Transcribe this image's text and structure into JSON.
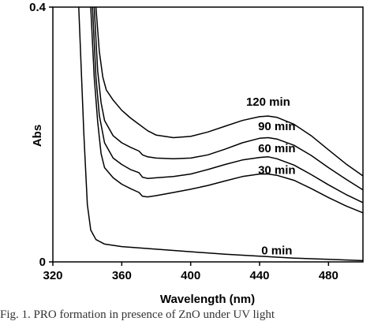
{
  "chart_data": {
    "type": "line",
    "title": "",
    "xlabel": "Wavelength (nm)",
    "ylabel": "Abs",
    "xlim": [
      320,
      500
    ],
    "ylim": [
      0,
      0.4
    ],
    "x_ticks": [
      "320",
      "360",
      "400",
      "440",
      "480"
    ],
    "y_ticks": [
      "0",
      "0.4"
    ],
    "grid": false,
    "series": [
      {
        "name": "0 min",
        "color": "#000000",
        "points": [
          [
            335,
            0.4
          ],
          [
            338,
            0.2
          ],
          [
            340,
            0.09
          ],
          [
            342,
            0.05
          ],
          [
            345,
            0.035
          ],
          [
            350,
            0.028
          ],
          [
            360,
            0.024
          ],
          [
            380,
            0.02
          ],
          [
            400,
            0.016
          ],
          [
            420,
            0.012
          ],
          [
            440,
            0.009
          ],
          [
            460,
            0.006
          ],
          [
            480,
            0.004
          ],
          [
            500,
            0.002
          ]
        ]
      },
      {
        "name": "30 min",
        "color": "#000000",
        "points": [
          [
            342,
            0.4
          ],
          [
            344,
            0.29
          ],
          [
            346,
            0.22
          ],
          [
            348,
            0.17
          ],
          [
            350,
            0.148
          ],
          [
            355,
            0.132
          ],
          [
            360,
            0.122
          ],
          [
            365,
            0.115
          ],
          [
            370,
            0.109
          ],
          [
            372,
            0.103
          ],
          [
            375,
            0.102
          ],
          [
            380,
            0.104
          ],
          [
            390,
            0.109
          ],
          [
            400,
            0.114
          ],
          [
            410,
            0.12
          ],
          [
            420,
            0.127
          ],
          [
            430,
            0.134
          ],
          [
            440,
            0.138
          ],
          [
            445,
            0.138
          ],
          [
            450,
            0.136
          ],
          [
            460,
            0.128
          ],
          [
            470,
            0.115
          ],
          [
            480,
            0.101
          ],
          [
            490,
            0.088
          ],
          [
            500,
            0.077
          ]
        ]
      },
      {
        "name": "60 min",
        "color": "#000000",
        "points": [
          [
            343,
            0.4
          ],
          [
            345,
            0.29
          ],
          [
            347,
            0.23
          ],
          [
            350,
            0.187
          ],
          [
            355,
            0.163
          ],
          [
            360,
            0.153
          ],
          [
            365,
            0.145
          ],
          [
            370,
            0.14
          ],
          [
            372,
            0.133
          ],
          [
            375,
            0.131
          ],
          [
            380,
            0.132
          ],
          [
            390,
            0.134
          ],
          [
            400,
            0.138
          ],
          [
            410,
            0.145
          ],
          [
            420,
            0.153
          ],
          [
            430,
            0.16
          ],
          [
            440,
            0.164
          ],
          [
            445,
            0.165
          ],
          [
            450,
            0.162
          ],
          [
            460,
            0.152
          ],
          [
            470,
            0.137
          ],
          [
            480,
            0.121
          ],
          [
            490,
            0.106
          ],
          [
            500,
            0.093
          ]
        ]
      },
      {
        "name": "90 min",
        "color": "#000000",
        "points": [
          [
            344,
            0.4
          ],
          [
            346,
            0.3
          ],
          [
            348,
            0.25
          ],
          [
            350,
            0.222
          ],
          [
            355,
            0.198
          ],
          [
            360,
            0.187
          ],
          [
            365,
            0.18
          ],
          [
            370,
            0.174
          ],
          [
            372,
            0.168
          ],
          [
            375,
            0.165
          ],
          [
            380,
            0.163
          ],
          [
            390,
            0.162
          ],
          [
            400,
            0.163
          ],
          [
            410,
            0.168
          ],
          [
            420,
            0.177
          ],
          [
            430,
            0.187
          ],
          [
            440,
            0.194
          ],
          [
            445,
            0.195
          ],
          [
            450,
            0.193
          ],
          [
            460,
            0.183
          ],
          [
            470,
            0.167
          ],
          [
            480,
            0.148
          ],
          [
            490,
            0.13
          ],
          [
            500,
            0.113
          ]
        ]
      },
      {
        "name": "120 min",
        "color": "#000000",
        "points": [
          [
            345,
            0.4
          ],
          [
            347,
            0.33
          ],
          [
            349,
            0.29
          ],
          [
            351,
            0.27
          ],
          [
            355,
            0.254
          ],
          [
            360,
            0.238
          ],
          [
            365,
            0.226
          ],
          [
            370,
            0.216
          ],
          [
            375,
            0.206
          ],
          [
            380,
            0.199
          ],
          [
            390,
            0.195
          ],
          [
            400,
            0.197
          ],
          [
            410,
            0.204
          ],
          [
            420,
            0.213
          ],
          [
            430,
            0.222
          ],
          [
            440,
            0.228
          ],
          [
            445,
            0.229
          ],
          [
            450,
            0.227
          ],
          [
            460,
            0.216
          ],
          [
            470,
            0.198
          ],
          [
            480,
            0.176
          ],
          [
            490,
            0.154
          ],
          [
            500,
            0.135
          ]
        ]
      }
    ],
    "annotations": [
      {
        "text": "120 min",
        "x": 445,
        "y": 0.245
      },
      {
        "text": "90 min",
        "x": 450,
        "y": 0.207
      },
      {
        "text": "60 min",
        "x": 450,
        "y": 0.172
      },
      {
        "text": "30 min",
        "x": 450,
        "y": 0.138
      },
      {
        "text": "0 min",
        "x": 450,
        "y": 0.012
      }
    ]
  },
  "caption": "Fig. 1. PRO formation in presence of ZnO under UV light"
}
